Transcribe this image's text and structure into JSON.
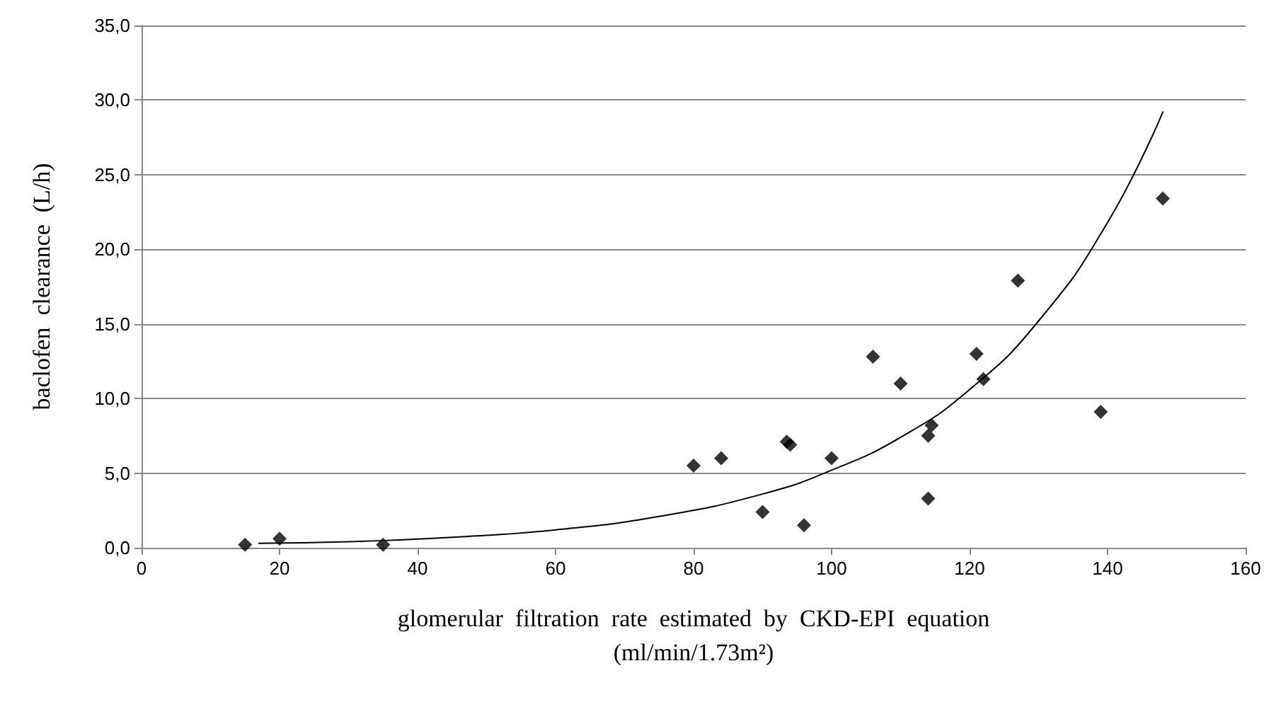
{
  "chart_data": {
    "type": "scatter",
    "xlabel": "glomerular  filtration  rate  estimated  by  CKD-EPI  equation\n(ml/min/1.73m²)",
    "ylabel": "baclofen  clearance  (L/h)",
    "series": [
      {
        "color": "#000000",
        "marker": "diamond",
        "x": [
          15,
          20,
          35,
          80,
          84,
          90,
          93.5,
          94,
          96,
          100,
          106,
          110,
          114,
          114.5,
          114,
          121,
          122,
          127,
          139,
          148
        ],
        "values": [
          0.2,
          0.6,
          0.2,
          5.5,
          6.0,
          2.4,
          7.1,
          6.9,
          1.5,
          6.0,
          12.8,
          11.0,
          7.5,
          8.2,
          3.3,
          13.0,
          11.3,
          17.9,
          9.1,
          23.4
        ]
      },
      {
        "type": "line",
        "color": "#000000",
        "marker": "none",
        "line_style": "solid",
        "x": [
          17,
          30,
          45,
          60,
          75,
          90,
          100,
          110,
          120,
          130,
          140,
          148
        ],
        "values": [
          0.3,
          0.4,
          0.7,
          1.2,
          2.1,
          3.6,
          5.2,
          7.4,
          10.6,
          15.2,
          21.8,
          29.2
        ]
      }
    ],
    "xlim": [
      0,
      160
    ],
    "xticks": [
      0,
      20,
      40,
      60,
      80,
      100,
      120,
      140,
      160
    ],
    "ylim": [
      0,
      35
    ],
    "yticks": [
      {
        "value": 0,
        "label": "0,0"
      },
      {
        "value": 5,
        "label": "5,0"
      },
      {
        "value": 10,
        "label": "10,0"
      },
      {
        "value": 15,
        "label": "15,0"
      },
      {
        "value": 20,
        "label": "20,0"
      },
      {
        "value": 25,
        "label": "25,0"
      },
      {
        "value": 30,
        "label": "30,0"
      },
      {
        "value": 35,
        "label": "35,0"
      }
    ],
    "grid": "y"
  }
}
